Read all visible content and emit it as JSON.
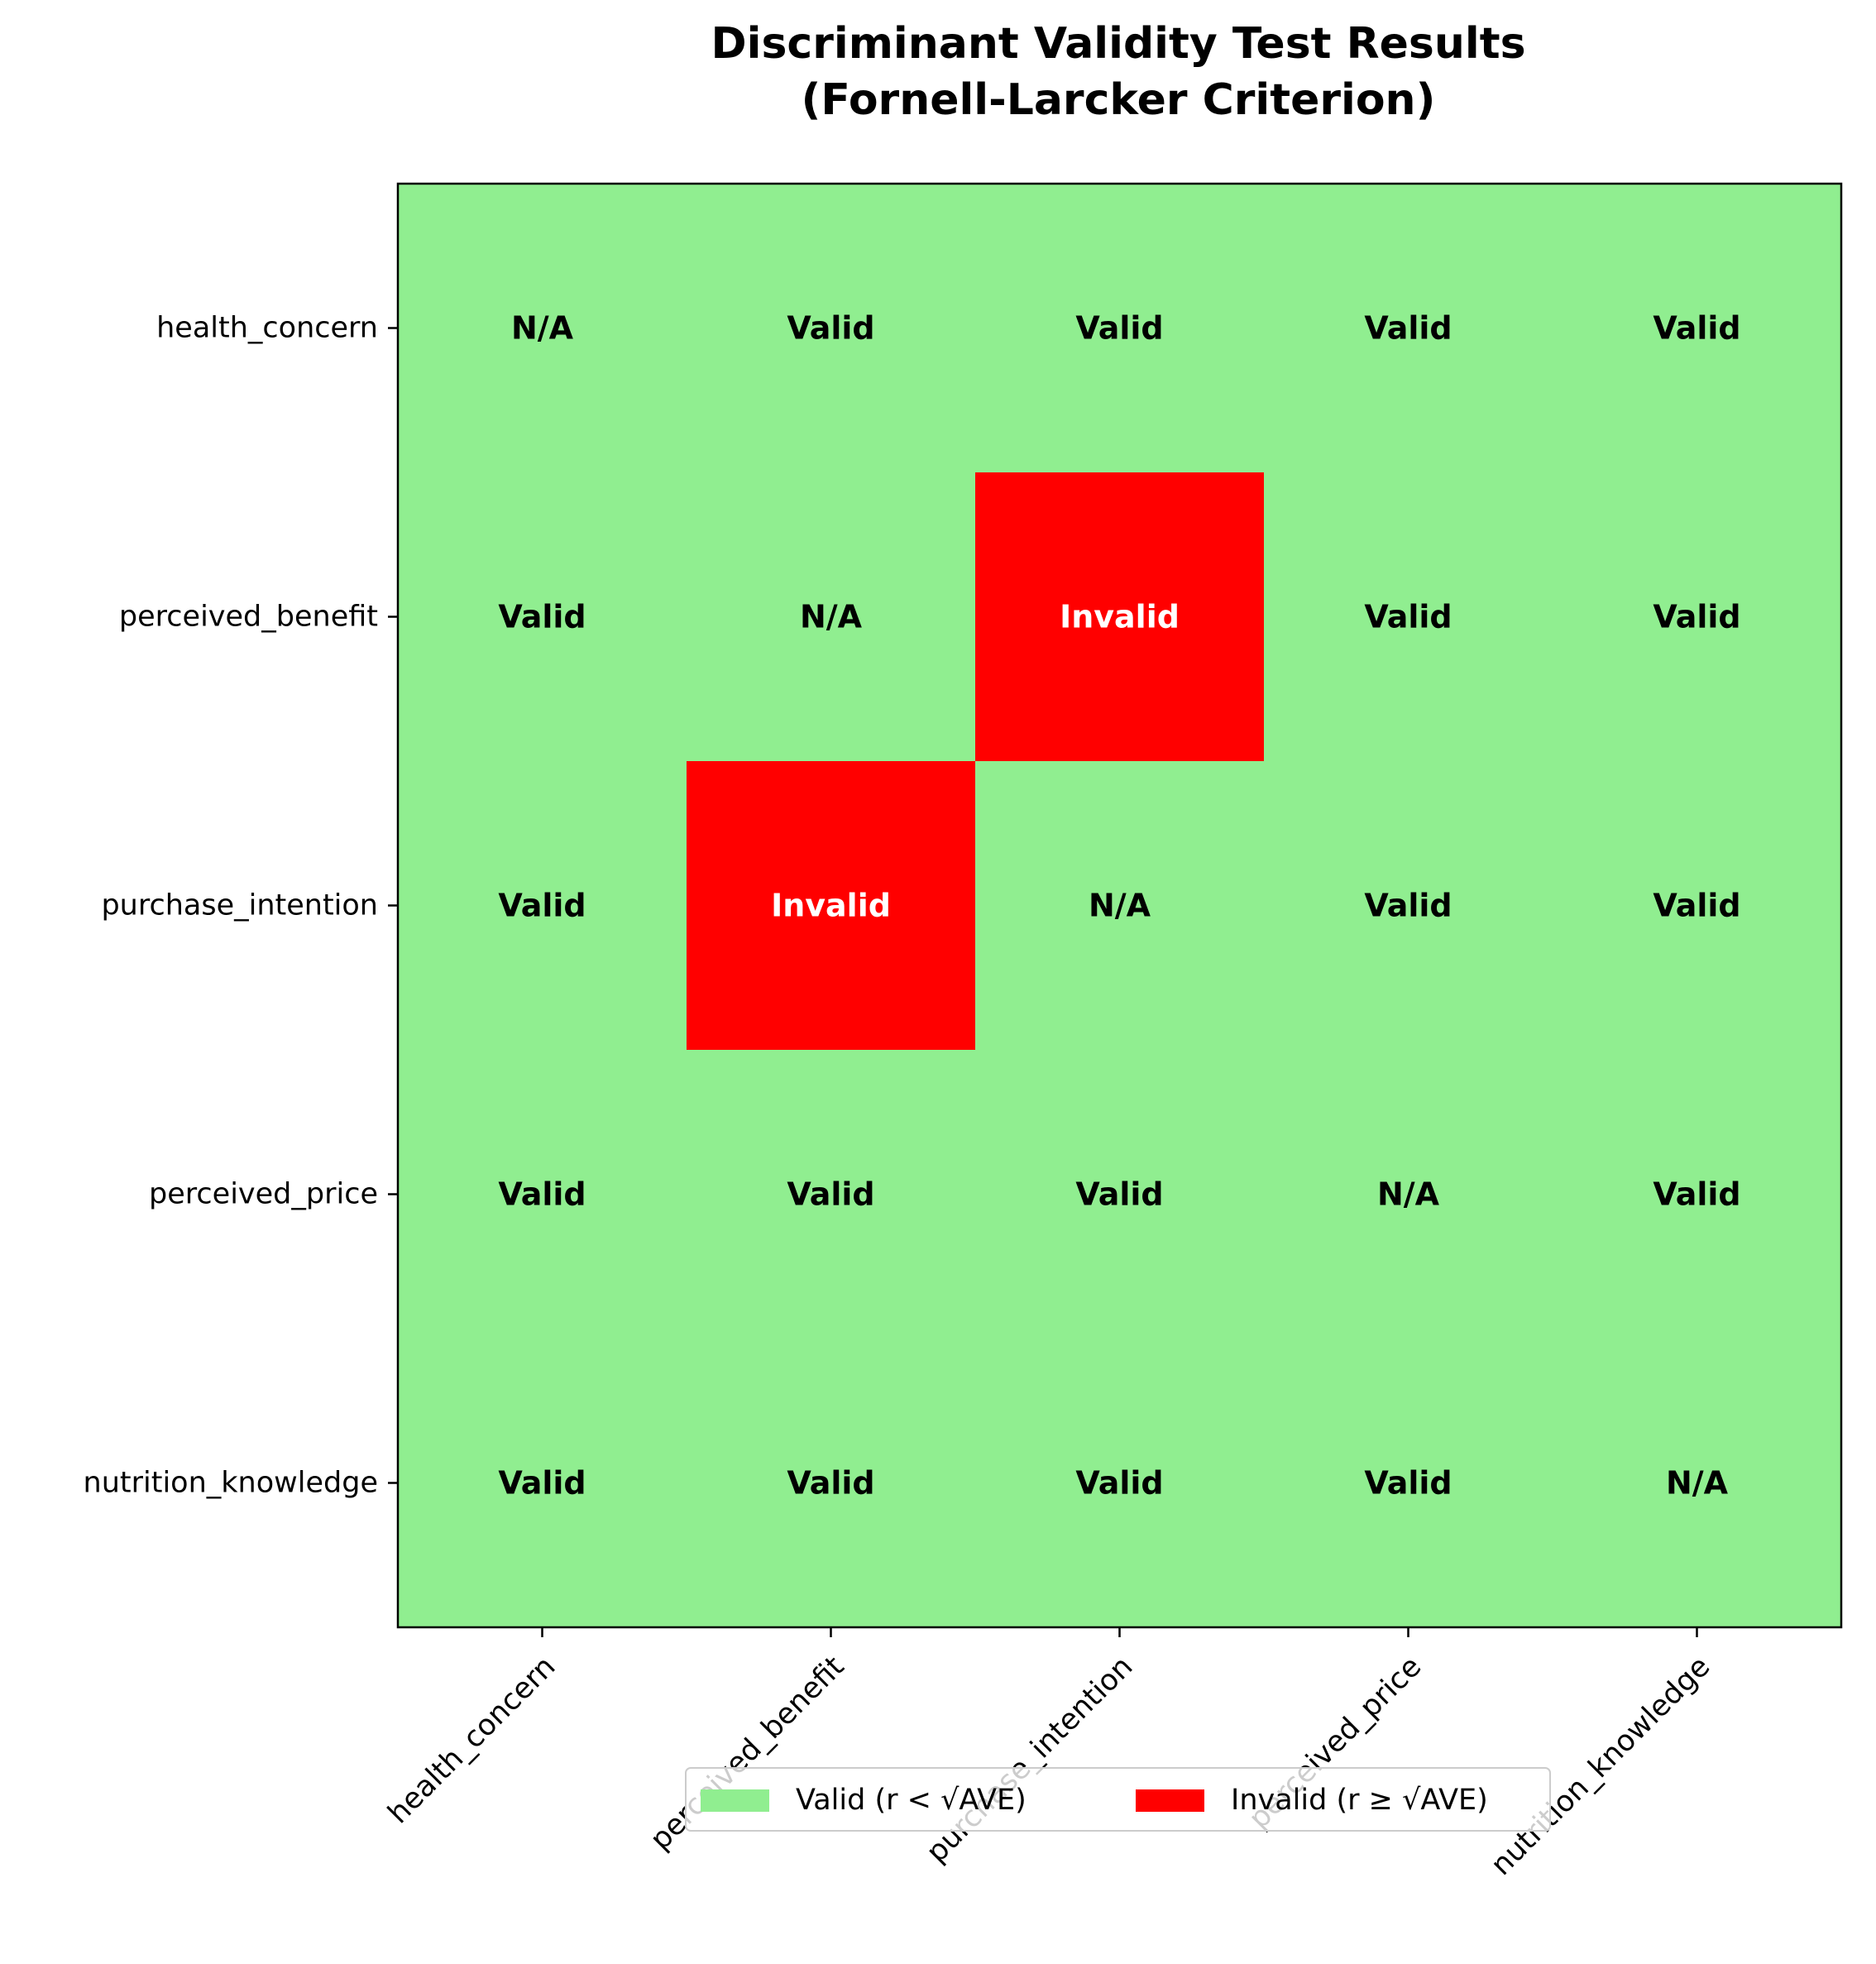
{
  "chart_data": {
    "type": "heatmap",
    "title": "Discriminant Validity Test Results\n(Fornell-Larcker Criterion)",
    "title_lines": [
      "Discriminant Validity Test Results",
      "(Fornell-Larcker Criterion)"
    ],
    "rows": [
      "health_concern",
      "perceived_benefit",
      "purchase_intention",
      "perceived_price",
      "nutrition_knowledge"
    ],
    "columns": [
      "health_concern",
      "perceived_benefit",
      "purchase_intention",
      "perceived_price",
      "nutrition_knowledge"
    ],
    "cells": [
      [
        "N/A",
        "Valid",
        "Valid",
        "Valid",
        "Valid"
      ],
      [
        "Valid",
        "N/A",
        "Invalid",
        "Valid",
        "Valid"
      ],
      [
        "Valid",
        "Invalid",
        "N/A",
        "Valid",
        "Valid"
      ],
      [
        "Valid",
        "Valid",
        "Valid",
        "N/A",
        "Valid"
      ],
      [
        "Valid",
        "Valid",
        "Valid",
        "Valid",
        "N/A"
      ]
    ],
    "colors": {
      "valid": "#90ee90",
      "invalid": "#ff0000"
    },
    "legend": [
      {
        "label": "Valid (r < √AVE)",
        "color": "#90ee90"
      },
      {
        "label": "Invalid (r ≥ √AVE)",
        "color": "#ff0000"
      }
    ],
    "legend_placement": "bottom-center",
    "grid": false
  }
}
